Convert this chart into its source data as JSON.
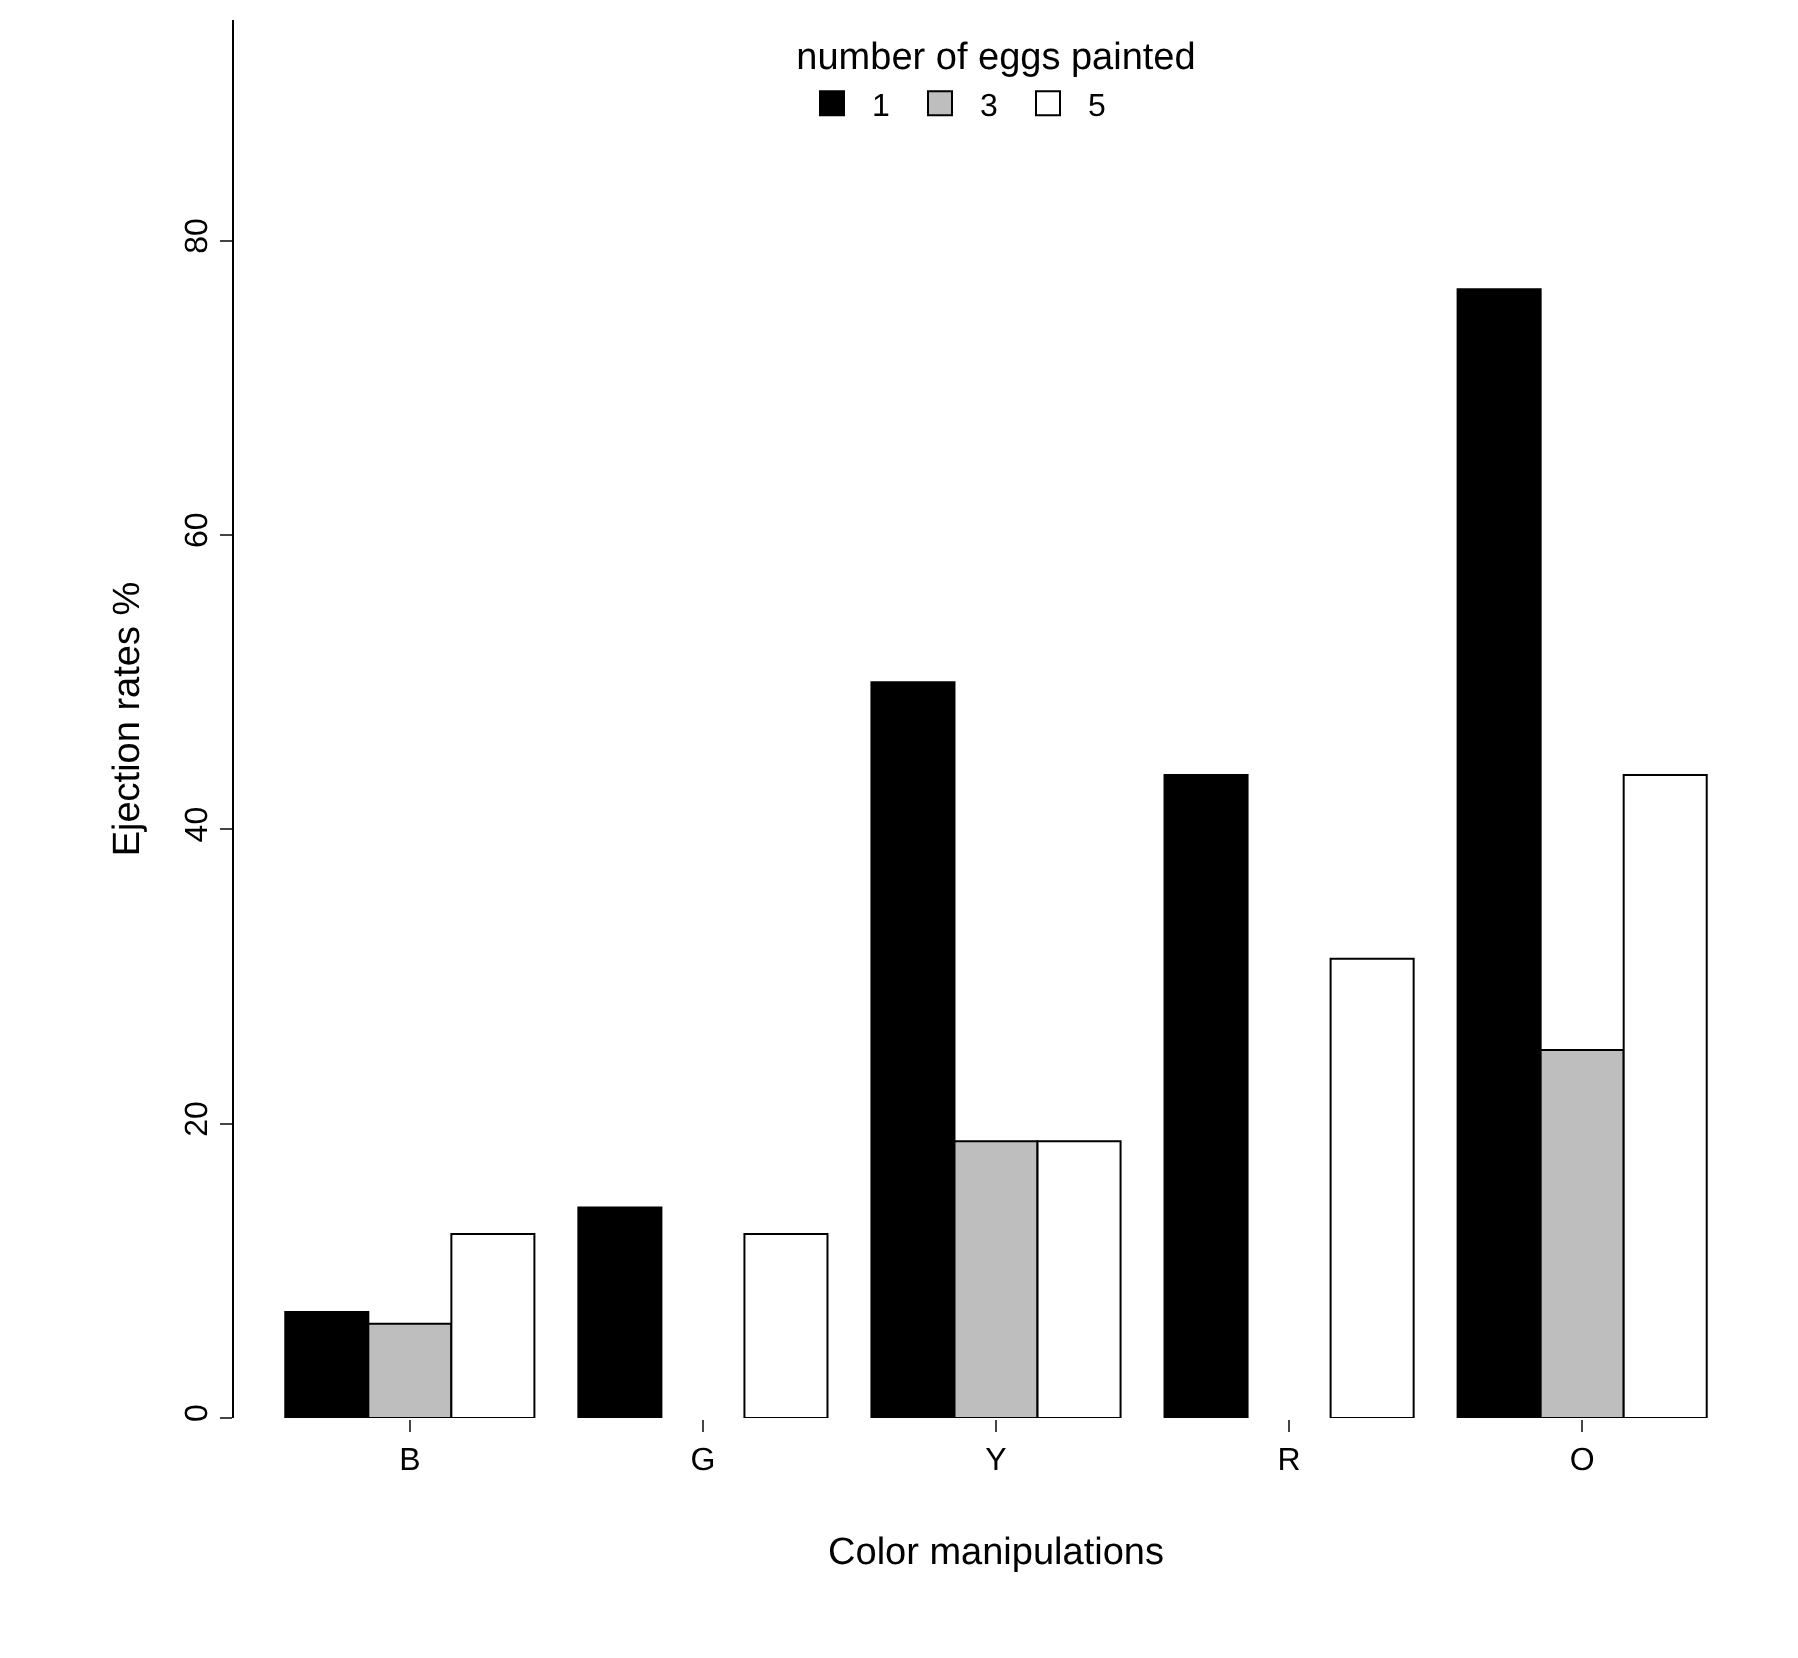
{
  "chart_data": {
    "type": "bar",
    "xlabel": "Color manipulations",
    "ylabel": "Ejection rates %",
    "legend_title": "number of eggs painted",
    "categories": [
      "B",
      "G",
      "Y",
      "R",
      "O"
    ],
    "series": [
      {
        "name": "1",
        "color": "#000000",
        "values": [
          7.2,
          14.3,
          50,
          43.7,
          76.7
        ]
      },
      {
        "name": "3",
        "color": "#bebebe",
        "values": [
          6.4,
          null,
          18.8,
          null,
          25.0
        ]
      },
      {
        "name": "5",
        "color": "#ffffff",
        "values": [
          12.5,
          12.5,
          18.8,
          31.2,
          43.7
        ]
      }
    ],
    "ylim": [
      0,
      95
    ],
    "yticks": [
      0,
      20,
      40,
      60,
      80
    ],
    "legend": "top"
  }
}
